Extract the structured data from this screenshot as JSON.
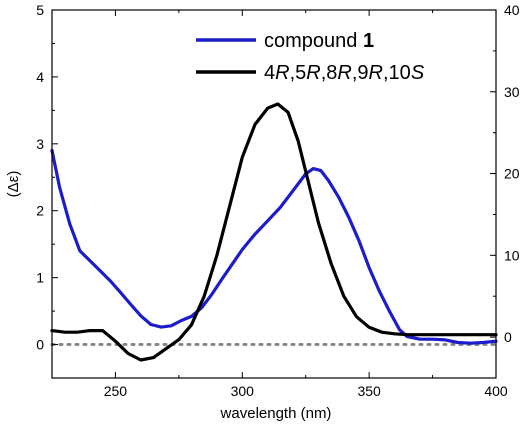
{
  "chart_data": {
    "type": "line",
    "xlabel": "wavelength (nm)",
    "ylabel": "(Δε)",
    "xlim": [
      225,
      400
    ],
    "ylim_left": [
      -0.5,
      5
    ],
    "ylim_right": [
      -5,
      40
    ],
    "x_ticks": [
      250,
      300,
      350,
      400
    ],
    "x_tick_labels": [
      "250",
      "300",
      "350",
      "400"
    ],
    "y_left_ticks": [
      0,
      1,
      2,
      3,
      4,
      5
    ],
    "y_left_tick_labels": [
      "0",
      "1",
      "2",
      "3",
      "4",
      "5"
    ],
    "y_right_ticks": [
      0,
      10,
      20,
      30,
      40
    ],
    "y_right_tick_labels": [
      "0",
      "10",
      "20",
      "30",
      "40"
    ],
    "grid": false,
    "legend_position": "top-right",
    "series": [
      {
        "name": "compound 1",
        "legend_parts": [
          {
            "text": "compound ",
            "bold": false
          },
          {
            "text": "1",
            "bold": true
          }
        ],
        "axis": "left",
        "color": "#1c1ccc",
        "x": [
          225,
          228,
          232,
          236,
          240,
          244,
          248,
          252,
          256,
          260,
          264,
          268,
          272,
          276,
          280,
          284,
          288,
          292,
          296,
          300,
          305,
          310,
          315,
          320,
          325,
          328,
          331,
          334,
          338,
          342,
          346,
          350,
          354,
          358,
          362,
          365,
          370,
          375,
          380,
          385,
          390,
          395,
          400
        ],
        "y": [
          2.9,
          2.35,
          1.8,
          1.4,
          1.25,
          1.1,
          0.95,
          0.78,
          0.6,
          0.43,
          0.3,
          0.26,
          0.28,
          0.36,
          0.42,
          0.55,
          0.75,
          0.98,
          1.2,
          1.42,
          1.65,
          1.85,
          2.05,
          2.3,
          2.55,
          2.63,
          2.6,
          2.45,
          2.2,
          1.9,
          1.55,
          1.15,
          0.8,
          0.5,
          0.22,
          0.12,
          0.08,
          0.08,
          0.07,
          0.03,
          0.02,
          0.03,
          0.05
        ]
      },
      {
        "name": "4R,5R,8R,9R,10S",
        "legend_parts": [
          {
            "text": "4",
            "italic": false
          },
          {
            "text": "R",
            "italic": true
          },
          {
            "text": ",5",
            "italic": false
          },
          {
            "text": "R",
            "italic": true
          },
          {
            "text": ",8",
            "italic": false
          },
          {
            "text": "R",
            "italic": true
          },
          {
            "text": ",9",
            "italic": false
          },
          {
            "text": "R",
            "italic": true
          },
          {
            "text": ",10",
            "italic": false
          },
          {
            "text": "S",
            "italic": true
          }
        ],
        "axis": "right",
        "color": "#000000",
        "x": [
          225,
          230,
          235,
          240,
          245,
          250,
          255,
          260,
          265,
          270,
          275,
          280,
          285,
          290,
          295,
          300,
          305,
          310,
          314,
          318,
          322,
          326,
          330,
          335,
          340,
          345,
          350,
          355,
          360,
          365,
          370,
          375,
          380,
          390,
          400
        ],
        "y": [
          0.8,
          0.6,
          0.6,
          0.8,
          0.8,
          -0.5,
          -2,
          -2.8,
          -2.5,
          -1.4,
          -0.3,
          1.5,
          5,
          10,
          16,
          22,
          26,
          28,
          28.5,
          27.5,
          24,
          19,
          14,
          9,
          5,
          2.5,
          1.2,
          0.6,
          0.4,
          0.3,
          0.3,
          0.3,
          0.3,
          0.3,
          0.3
        ]
      }
    ],
    "reference_line": {
      "y": 0,
      "axis": "left",
      "style": "dotted",
      "color": "#888888"
    }
  }
}
